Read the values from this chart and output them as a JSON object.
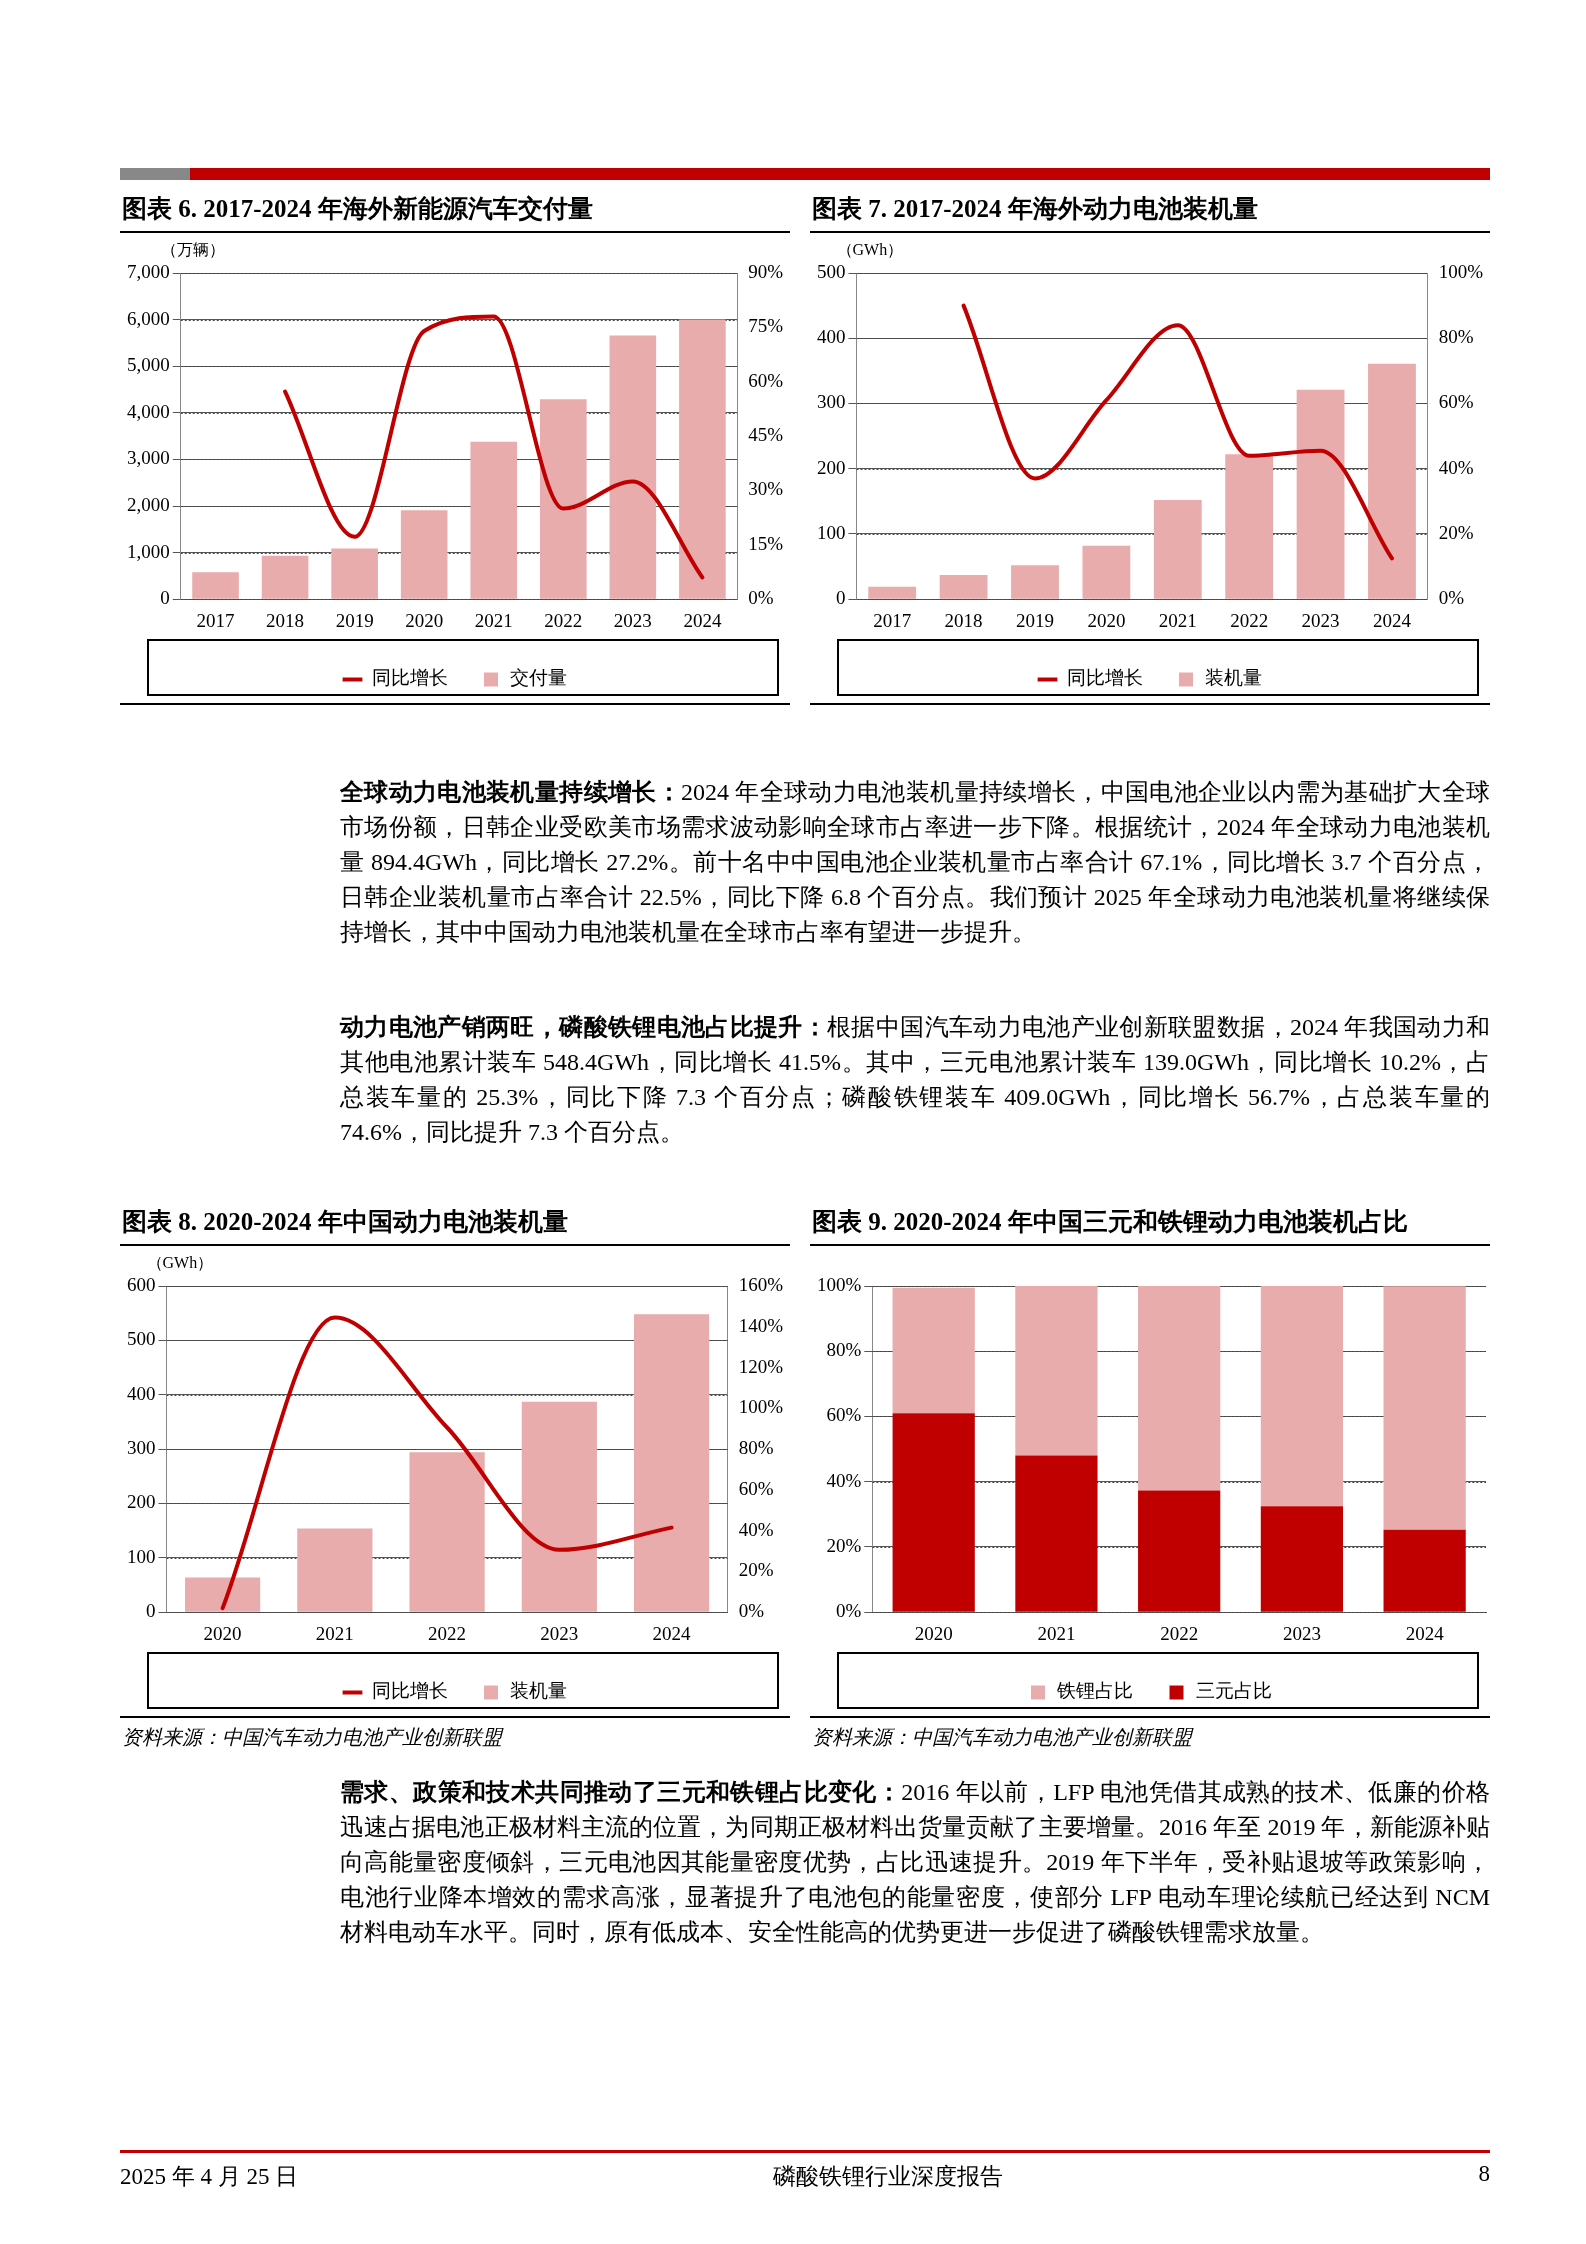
{
  "chart_data": [
    {
      "type": "bar",
      "title": "图表 6. 2017-2024 年海外新能源汽车交付量",
      "ylabel": "（万辆）",
      "categories": [
        "2017",
        "2018",
        "2019",
        "2020",
        "2021",
        "2022",
        "2023",
        "2024"
      ],
      "series": [
        {
          "name": "交付量",
          "type": "bar",
          "color": "#e8acac",
          "values": [
            580,
            930,
            1090,
            1910,
            3380,
            4290,
            5660,
            6000
          ]
        },
        {
          "name": "同比增长",
          "type": "line",
          "axis": "y2",
          "color": "#c00000",
          "values": [
            null,
            57.3,
            17.2,
            74,
            78,
            25,
            32.5,
            6
          ]
        }
      ],
      "ylim": [
        0,
        7000
      ],
      "yticks": [
        {
          "value": 0,
          "label": "0"
        },
        {
          "value": 1000,
          "label": "1,000"
        },
        {
          "value": 2000,
          "label": "2,000"
        },
        {
          "value": 3000,
          "label": "3,000"
        },
        {
          "value": 4000,
          "label": "4,000"
        },
        {
          "value": 5000,
          "label": "5,000"
        },
        {
          "value": 6000,
          "label": "6,000"
        },
        {
          "value": 7000,
          "label": "7,000"
        }
      ],
      "y2lim": [
        0,
        90
      ],
      "y2ticks": [
        {
          "value": 0,
          "label": "0%"
        },
        {
          "value": 15,
          "label": "15%"
        },
        {
          "value": 30,
          "label": "30%"
        },
        {
          "value": 45,
          "label": "45%"
        },
        {
          "value": 60,
          "label": "60%"
        },
        {
          "value": 75,
          "label": "75%"
        },
        {
          "value": 90,
          "label": "90%"
        }
      ],
      "grid": "y",
      "legend": "bottom",
      "marker": "none"
    },
    {
      "type": "bar",
      "title": "图表 7. 2017-2024 年海外动力电池装机量",
      "ylabel": "（GWh）",
      "categories": [
        "2017",
        "2018",
        "2019",
        "2020",
        "2021",
        "2022",
        "2023",
        "2024"
      ],
      "series": [
        {
          "name": "装机量",
          "type": "bar",
          "color": "#e8acac",
          "values": [
            19,
            37,
            52,
            82,
            152,
            222,
            321,
            361
          ]
        },
        {
          "name": "同比增长",
          "type": "line",
          "axis": "y2",
          "color": "#c00000",
          "values": [
            null,
            90,
            37,
            61,
            84,
            44,
            45.5,
            12.5
          ]
        }
      ],
      "ylim": [
        0,
        500
      ],
      "yticks": [
        0,
        100,
        200,
        300,
        400,
        500
      ],
      "y2lim": [
        0,
        100
      ],
      "y2ticks": [
        {
          "value": 0,
          "label": "0%"
        },
        {
          "value": 20,
          "label": "20%"
        },
        {
          "value": 40,
          "label": "40%"
        },
        {
          "value": 60,
          "label": "60%"
        },
        {
          "value": 80,
          "label": "80%"
        },
        {
          "value": 100,
          "label": "100%"
        }
      ],
      "grid": "y",
      "legend": "bottom",
      "marker": "none"
    },
    {
      "type": "other",
      "title": "全球动力电池装机量持续增长：",
      "annotations": [
        "2024 年全球动力电池装机量持续增长，中国电池企业以内需为基础扩大全球市场份额，日韩企业受欧美市场需求波动影响全球市占率进一步下降。根据统计，2024 年全球动力电池装机量 894.4GWh，同比增长 27.2%。前十名中中国电池企业装机量市占率合计 67.1%，同比增长 3.7 个百分点，日韩企业装机量市占率合计 22.5%，同比下降 6.8 个百分点。我们预计 2025 年全球动力电池装机量将继续保持增长，其中中国动力电池装机量在全球市占率有望进一步提升。"
      ]
    },
    {
      "type": "other",
      "title": "动力电池产销两旺，磷酸铁锂电池占比提升：",
      "annotations": [
        "根据中国汽车动力电池产业创新联盟数据，2024 年我国动力和其他电池累计装车 548.4GWh，同比增长 41.5%。其中，三元电池累计装车 139.0GWh，同比增长 10.2%，占总装车量的 25.3%，同比下降 7.3 个百分点；磷酸铁锂装车 409.0GWh，同比增长 56.7%，占总装车量的 74.6%，同比提升 7.3 个百分点。"
      ]
    },
    {
      "type": "bar",
      "title": "图表 8. 2020-2024 年中国动力电池装机量",
      "ylabel": "（GWh）",
      "categories": [
        "2020",
        "2021",
        "2022",
        "2023",
        "2024"
      ],
      "series": [
        {
          "name": "装机量",
          "type": "bar",
          "color": "#e8acac",
          "values": [
            64,
            154,
            294,
            387,
            548
          ]
        },
        {
          "name": "同比增长",
          "type": "line",
          "axis": "y2",
          "color": "#c00000",
          "values": [
            2,
            144.5,
            90.6,
            30.6,
            41.5
          ]
        }
      ],
      "ylim": [
        0,
        600
      ],
      "yticks": [
        0,
        100,
        200,
        300,
        400,
        500,
        600
      ],
      "y2lim": [
        0,
        160
      ],
      "y2ticks": [
        {
          "value": 0,
          "label": "0%"
        },
        {
          "value": 20,
          "label": "20%"
        },
        {
          "value": 40,
          "label": "40%"
        },
        {
          "value": 60,
          "label": "60%"
        },
        {
          "value": 80,
          "label": "80%"
        },
        {
          "value": 100,
          "label": "100%"
        },
        {
          "value": 120,
          "label": "120%"
        },
        {
          "value": 140,
          "label": "140%"
        },
        {
          "value": 160,
          "label": "160%"
        }
      ],
      "grid": "y",
      "legend": "bottom",
      "marker": "none",
      "annotations": [
        "资料来源：中国汽车动力电池产业创新联盟"
      ]
    },
    {
      "type": "bar",
      "title": "图表 9. 2020-2024 年中国三元和铁锂动力电池装机占比",
      "categories": [
        "2020",
        "2021",
        "2022",
        "2023",
        "2024"
      ],
      "stacked": true,
      "series": [
        {
          "name": "三元占比",
          "color": "#c00000",
          "values": [
            61,
            48,
            37.3,
            32.5,
            25.3
          ]
        },
        {
          "name": "铁锂占比",
          "color": "#e8acac",
          "values": [
            38.5,
            52,
            62.7,
            67.5,
            74.6
          ]
        }
      ],
      "ylim": [
        0,
        100
      ],
      "yticks": [
        {
          "value": 0,
          "label": "0%"
        },
        {
          "value": 20,
          "label": "20%"
        },
        {
          "value": 40,
          "label": "40%"
        },
        {
          "value": 60,
          "label": "60%"
        },
        {
          "value": 80,
          "label": "80%"
        },
        {
          "value": 100,
          "label": "100%"
        }
      ],
      "grid": "y",
      "legend": "bottom",
      "annotations": [
        "资料来源：中国汽车动力电池产业创新联盟"
      ]
    },
    {
      "type": "other",
      "title": "需求、政策和技术共同推动了三元和铁锂占比变化：",
      "annotations": [
        "2016 年以前，LFP 电池凭借其成熟的技术、低廉的价格迅速占据电池正极材料主流的位置，为同期正极材料出货量贡献了主要增量。2016 年至 2019 年，新能源补贴向高能量密度倾斜，三元电池因其能量密度优势，占比迅速提升。2019 年下半年，受补贴退坡等政策影响，电池行业降本增效的需求高涨，显著提升了电池包的能量密度，使部分 LFP 电动车理论续航已经达到 NCM 材料电动车水平。同时，原有低成本、安全性能高的优势更进一步促进了磷酸铁锂需求放量。"
      ]
    },
    {
      "type": "other",
      "annotations": [
        "2025 年 4 月 25 日",
        "磷酸铁锂行业深度报告",
        "8"
      ]
    }
  ]
}
